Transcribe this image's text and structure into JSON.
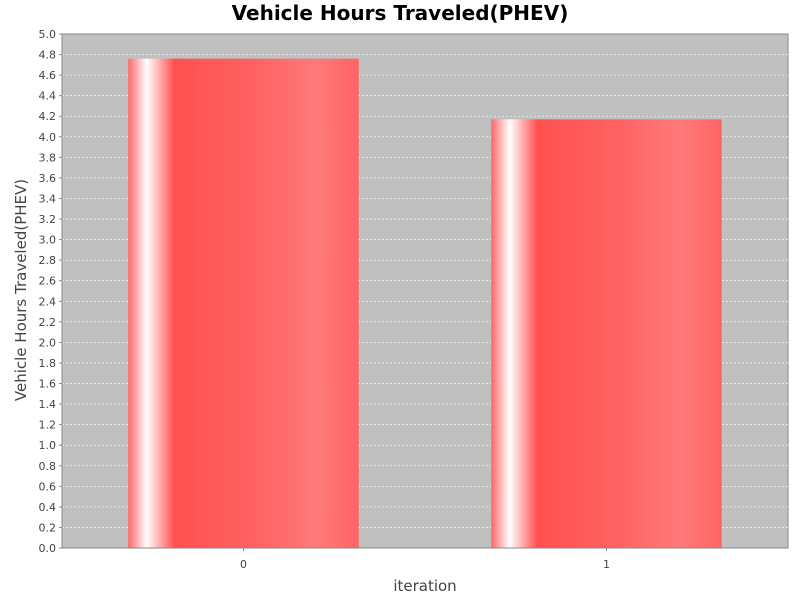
{
  "chart_data": {
    "type": "bar",
    "title": "Vehicle Hours Traveled(PHEV)",
    "xlabel": "iteration",
    "ylabel": "Vehicle Hours Traveled(PHEV)",
    "categories": [
      "0",
      "1"
    ],
    "values": [
      4.76,
      4.17
    ],
    "ylim": [
      0,
      5
    ],
    "ytick_step": 0.2,
    "grid": true,
    "legend": "none",
    "colors": {
      "plot_background": "#c0c0c0",
      "grid": "#ffffff",
      "bar": "#ff5555",
      "bar_highlight": "#ffffff"
    }
  }
}
